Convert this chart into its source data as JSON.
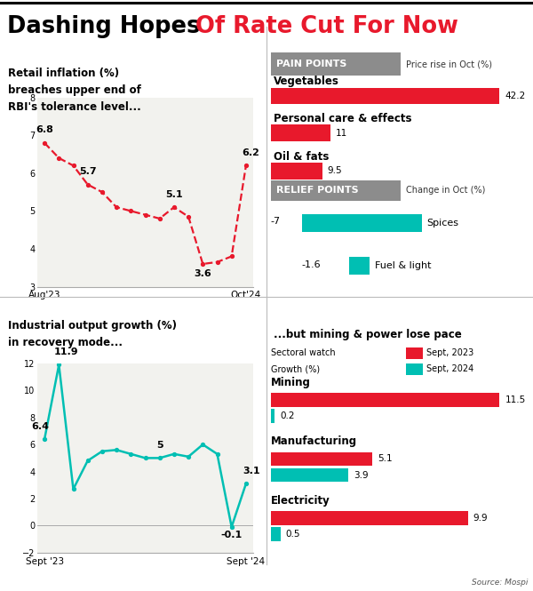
{
  "title_black": "Dashing Hopes ",
  "title_red": "Of Rate Cut For Now",
  "retail_title": "Retail inflation (%)\nbreaches upper end of\nRBI's tolerance level...",
  "retail_x": [
    0,
    1,
    2,
    3,
    4,
    5,
    6,
    7,
    8,
    9,
    10,
    11,
    12,
    13,
    14
  ],
  "retail_y": [
    6.8,
    6.4,
    6.2,
    5.7,
    5.5,
    5.1,
    5.0,
    4.9,
    4.8,
    5.1,
    4.85,
    3.6,
    3.65,
    3.8,
    6.2
  ],
  "retail_labels": {
    "0": "6.8",
    "3": "5.7",
    "9": "5.1",
    "11": "3.6",
    "14": "6.2"
  },
  "retail_xlabel_start": "Aug'23",
  "retail_xlabel_end": "Oct'24",
  "retail_ylim": [
    3,
    8
  ],
  "retail_yticks": [
    3,
    4,
    5,
    6,
    7,
    8
  ],
  "retail_color": "#e8192c",
  "pain_header": "PAIN POINTS",
  "pain_subheader": "Price rise in Oct (%)",
  "pain_items": [
    "Vegetables",
    "Personal care & effects",
    "Oil & fats"
  ],
  "pain_values": [
    42.2,
    11.0,
    9.5
  ],
  "pain_value_labels": [
    "42.2",
    "11",
    "9.5"
  ],
  "pain_color": "#e8192c",
  "pain_max": 42.2,
  "relief_header": "RELIEF POINTS",
  "relief_subheader": "Change in Oct (%)",
  "relief_color": "#00bfb3",
  "iip_title": "Industrial output growth (%)\nin recovery mode...",
  "iip_x": [
    0,
    1,
    2,
    3,
    4,
    5,
    6,
    7,
    8,
    9,
    10,
    11,
    12,
    13,
    14
  ],
  "iip_y": [
    6.4,
    11.9,
    2.7,
    4.8,
    5.5,
    5.6,
    5.3,
    5.0,
    5.0,
    5.3,
    5.1,
    6.0,
    5.3,
    -0.1,
    3.1
  ],
  "iip_labels": {
    "0": "6.4",
    "1": "11.9",
    "8": "5",
    "13": "-0.1",
    "14": "3.1"
  },
  "iip_xlabel_start": "Sept '23",
  "iip_xlabel_end": "Sept '24",
  "iip_ylim": [
    -2,
    12
  ],
  "iip_yticks": [
    -2,
    0,
    2,
    4,
    6,
    8,
    10,
    12
  ],
  "iip_color": "#00bfb3",
  "sector_title": "...but mining & power lose pace",
  "sector_watch_line1": "Sectoral watch",
  "sector_watch_line2": "Growth (%)",
  "sector_label1": "Sept, 2023",
  "sector_label2": "Sept, 2024",
  "sector_color1": "#e8192c",
  "sector_color2": "#00bfb3",
  "sector_items": [
    "Mining",
    "Manufacturing",
    "Electricity"
  ],
  "sector_val1": [
    11.5,
    5.1,
    9.9
  ],
  "sector_val2": [
    0.2,
    3.9,
    0.5
  ],
  "sector_val1_labels": [
    "11.5",
    "5.1",
    "9.9"
  ],
  "sector_val2_labels": [
    "0.2",
    "3.9",
    "0.5"
  ],
  "sector_max": 11.5,
  "source": "Source: Mospi",
  "header_gray": "#8c8c8c"
}
